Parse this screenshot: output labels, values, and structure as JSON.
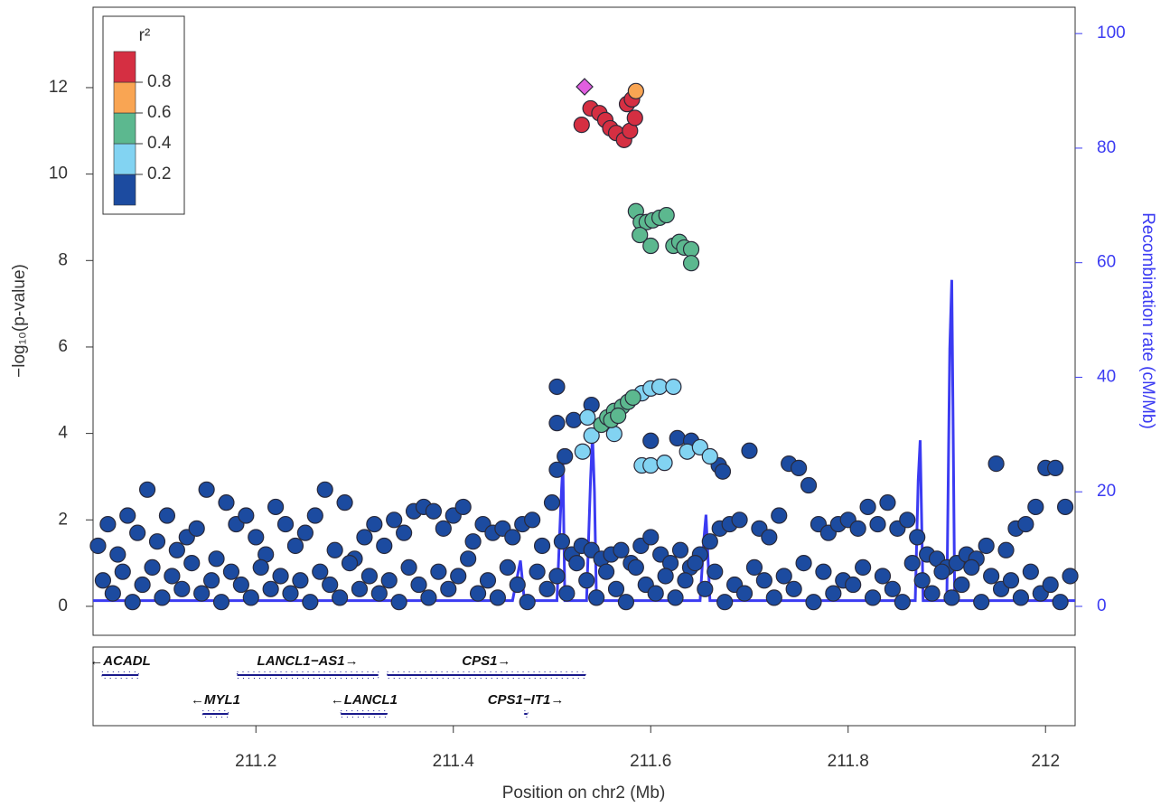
{
  "chart_data": {
    "type": "scatter",
    "y_label": "−log₁₀(p-value)",
    "y2_label": "Recombination rate (cM/Mb)",
    "x_label": "Position on chr2 (Mb)",
    "xlim": [
      211.035,
      212.03
    ],
    "xticks": [
      211.2,
      211.4,
      211.6,
      211.8,
      212
    ],
    "ylim": [
      -0.67,
      13.86
    ],
    "yticks": [
      0,
      2,
      4,
      6,
      8,
      10,
      12
    ],
    "y2lim": [
      -5.05,
      104.6
    ],
    "y2ticks": [
      0,
      20,
      40,
      60,
      80,
      100
    ],
    "legend": {
      "title": "r²",
      "lim": [
        0,
        1
      ],
      "ticks": [
        0.2,
        0.4,
        0.6,
        0.8
      ],
      "colors": [
        "#1c4ba0",
        "#82d3f2",
        "#5cb88f",
        "#f9a553",
        "#d52f42"
      ]
    },
    "series": [
      {
        "color": "#1c4ba0",
        "marker": "circle",
        "x": [
          211.04,
          211.05,
          211.06,
          211.07,
          211.08,
          211.09,
          211.1,
          211.11,
          211.12,
          211.13,
          211.14,
          211.15,
          211.16,
          211.17,
          211.18,
          211.19,
          211.2,
          211.21,
          211.22,
          211.23,
          211.24,
          211.25,
          211.26,
          211.27,
          211.28,
          211.29,
          211.3,
          211.31,
          211.32,
          211.33,
          211.34,
          211.35,
          211.36,
          211.37,
          211.38,
          211.39,
          211.4,
          211.41,
          211.42,
          211.43,
          211.44,
          211.45,
          211.46,
          211.47,
          211.48,
          211.49,
          211.5,
          211.51,
          211.52,
          211.53,
          211.54,
          211.55,
          211.56,
          211.57,
          211.58,
          211.59,
          211.6,
          211.61,
          211.62,
          211.63,
          211.64,
          211.65,
          211.66,
          211.67,
          211.68,
          211.69,
          211.7,
          211.71,
          211.72,
          211.73,
          211.74,
          211.75,
          211.76,
          211.77,
          211.78,
          211.79,
          211.8,
          211.81,
          211.82,
          211.83,
          211.84,
          211.85,
          211.86,
          211.87,
          211.88,
          211.89,
          211.9,
          211.91,
          211.92,
          211.93,
          211.94,
          211.95,
          211.96,
          211.97,
          211.98,
          211.99,
          212,
          212.01,
          212.02
        ],
        "values": [
          1.4,
          1.9,
          1.2,
          2.1,
          1.7,
          2.7,
          1.5,
          2.1,
          1.3,
          1.6,
          1.8,
          2.7,
          1.1,
          2.4,
          1.9,
          2.1,
          1.6,
          1.2,
          2.3,
          1.9,
          1.4,
          1.7,
          2.1,
          2.7,
          1.3,
          2.4,
          1.1,
          1.6,
          1.9,
          1.4,
          2.0,
          1.7,
          2.2,
          2.3,
          2.2,
          1.8,
          2.1,
          2.3,
          1.5,
          1.9,
          1.7,
          1.8,
          1.6,
          1.9,
          2.0,
          1.4,
          2.4,
          1.5,
          1.2,
          1.4,
          1.3,
          1.1,
          1.2,
          1.3,
          1.0,
          1.4,
          1.6,
          1.2,
          1.0,
          1.3,
          0.9,
          1.2,
          1.5,
          1.8,
          1.9,
          2.0,
          3.6,
          1.8,
          1.6,
          2.1,
          3.3,
          3.2,
          2.8,
          1.9,
          1.7,
          1.9,
          2.0,
          1.8,
          2.3,
          1.9,
          2.4,
          1.8,
          2.0,
          1.6,
          1.2,
          1.1,
          0.9,
          1.0,
          1.2,
          1.1,
          1.4,
          3.3,
          1.3,
          1.8,
          1.9,
          2.3,
          3.2,
          3.2,
          2.3
        ]
      },
      {
        "color": "#1c4ba0",
        "marker": "circle",
        "x": [
          211.045,
          211.055,
          211.065,
          211.075,
          211.085,
          211.095,
          211.105,
          211.115,
          211.125,
          211.135,
          211.145,
          211.155,
          211.165,
          211.175,
          211.185,
          211.195,
          211.205,
          211.215,
          211.225,
          211.235,
          211.245,
          211.255,
          211.265,
          211.275,
          211.285,
          211.295,
          211.305,
          211.315,
          211.325,
          211.335,
          211.345,
          211.355,
          211.365,
          211.375,
          211.385,
          211.395,
          211.405,
          211.415,
          211.425,
          211.435,
          211.445,
          211.455,
          211.465,
          211.475,
          211.485,
          211.495,
          211.505,
          211.515,
          211.525,
          211.535,
          211.545,
          211.555,
          211.565,
          211.575,
          211.585,
          211.595,
          211.605,
          211.615,
          211.625,
          211.635,
          211.645,
          211.655,
          211.665,
          211.675,
          211.685,
          211.695,
          211.705,
          211.715,
          211.725,
          211.735,
          211.745,
          211.755,
          211.765,
          211.775,
          211.785,
          211.795,
          211.805,
          211.815,
          211.825,
          211.835,
          211.845,
          211.855,
          211.865,
          211.875,
          211.885,
          211.895,
          211.905,
          211.915,
          211.925,
          211.935,
          211.945,
          211.955,
          211.965,
          211.975,
          211.985,
          211.995,
          212.005,
          212.015,
          212.025
        ],
        "values": [
          0.6,
          0.3,
          0.8,
          0.1,
          0.5,
          0.9,
          0.2,
          0.7,
          0.4,
          1.0,
          0.3,
          0.6,
          0.1,
          0.8,
          0.5,
          0.2,
          0.9,
          0.4,
          0.7,
          0.3,
          0.6,
          0.1,
          0.8,
          0.5,
          0.2,
          1.0,
          0.4,
          0.7,
          0.3,
          0.6,
          0.1,
          0.9,
          0.5,
          0.2,
          0.8,
          0.4,
          0.7,
          1.1,
          0.3,
          0.6,
          0.2,
          0.9,
          0.5,
          0.1,
          0.8,
          0.4,
          0.7,
          0.3,
          1.0,
          0.6,
          0.2,
          0.8,
          0.4,
          0.1,
          0.9,
          0.5,
          0.3,
          0.7,
          0.2,
          0.6,
          1.0,
          0.4,
          0.8,
          0.1,
          0.5,
          0.3,
          0.9,
          0.6,
          0.2,
          0.7,
          0.4,
          1.0,
          0.1,
          0.8,
          0.3,
          0.6,
          0.5,
          0.9,
          0.2,
          0.7,
          0.4,
          0.1,
          1.0,
          0.6,
          0.3,
          0.8,
          0.2,
          0.5,
          0.9,
          0.1,
          0.7,
          0.4,
          0.6,
          0.2,
          0.8,
          0.3,
          0.5,
          0.1,
          0.7
        ]
      },
      {
        "color": "#1c4ba0",
        "marker": "circle",
        "x": [
          211.505,
          211.505,
          211.522,
          211.54,
          211.6,
          211.627,
          211.641,
          211.669,
          211.673,
          211.505,
          211.513
        ],
        "values": [
          5.08,
          4.24,
          4.31,
          4.66,
          3.83,
          3.89,
          3.83,
          3.26,
          3.12,
          3.16,
          3.47
        ]
      },
      {
        "color": "#82d3f2",
        "marker": "circle",
        "x": [
          211.531,
          211.54,
          211.563,
          211.591,
          211.6,
          211.614,
          211.637,
          211.65,
          211.66,
          211.591,
          211.6,
          211.609,
          211.623,
          211.536
        ],
        "values": [
          3.58,
          3.95,
          3.99,
          3.26,
          3.26,
          3.32,
          3.58,
          3.68,
          3.47,
          4.93,
          5.04,
          5.08,
          5.08,
          4.37
        ]
      },
      {
        "color": "#5cb88f",
        "marker": "circle",
        "x": [
          211.55,
          211.556,
          211.563,
          211.571,
          211.577,
          211.582,
          211.56,
          211.567,
          211.585,
          211.59,
          211.596,
          211.602,
          211.609,
          211.616,
          211.589,
          211.6,
          211.623,
          211.629,
          211.634,
          211.641,
          211.641
        ],
        "values": [
          4.2,
          4.37,
          4.52,
          4.62,
          4.73,
          4.83,
          4.31,
          4.41,
          9.14,
          8.89,
          8.89,
          8.93,
          8.99,
          9.05,
          8.59,
          8.34,
          8.34,
          8.43,
          8.3,
          8.26,
          7.94
        ]
      },
      {
        "color": "#d52f42",
        "marker": "circle",
        "x": [
          211.53,
          211.539,
          211.548,
          211.554,
          211.559,
          211.565,
          211.573,
          211.579,
          211.584,
          211.576,
          211.581
        ],
        "values": [
          11.14,
          11.52,
          11.41,
          11.25,
          11.06,
          10.95,
          10.79,
          11.0,
          11.3,
          11.62,
          11.73
        ]
      },
      {
        "color": "#f9a553",
        "marker": "circle",
        "x": [
          211.585
        ],
        "values": [
          11.92
        ]
      },
      {
        "color": "#e15ee0",
        "marker": "diamond",
        "x": [
          211.533
        ],
        "values": [
          12.02
        ]
      },
      {
        "color": "#3b3bf2",
        "marker": "line",
        "axis": "y2",
        "x": [
          211.035,
          211.46,
          211.468,
          211.472,
          211.505,
          211.509,
          211.511,
          211.513,
          211.535,
          211.539,
          211.541,
          211.543,
          211.545,
          211.65,
          211.654,
          211.656,
          211.66,
          211.868,
          211.871,
          211.873,
          211.876,
          211.9,
          211.903,
          211.905,
          211.908,
          212.03
        ],
        "values": [
          1,
          1,
          8,
          1,
          1,
          18,
          25,
          1,
          1,
          22,
          30,
          20,
          1,
          1,
          12,
          16,
          1,
          1,
          22,
          29,
          1,
          1,
          45,
          57,
          1,
          1
        ]
      }
    ],
    "genes": [
      {
        "label": "←ACADL",
        "start": 211.044,
        "end": 211.081,
        "row": 0
      },
      {
        "label": "LANCL1−AS1→",
        "start": 211.181,
        "end": 211.324,
        "row": 0
      },
      {
        "label": "CPS1→",
        "start": 211.333,
        "end": 211.534,
        "row": 0
      },
      {
        "label": "←MYL1",
        "start": 211.146,
        "end": 211.172,
        "row": 1
      },
      {
        "label": "←LANCL1",
        "start": 211.286,
        "end": 211.333,
        "row": 1
      },
      {
        "label": "CPS1−IT1→",
        "start": 211.472,
        "end": 211.475,
        "row": 1
      }
    ]
  }
}
